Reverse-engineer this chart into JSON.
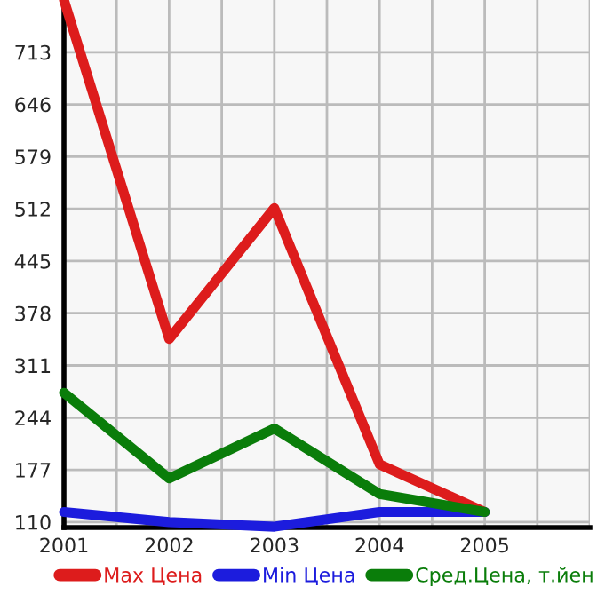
{
  "chart_data": {
    "type": "line",
    "x": [
      2001,
      2002,
      2003,
      2004,
      2005
    ],
    "series": [
      {
        "name": "Max Цена",
        "color": "#dd1c1c",
        "values": [
          780,
          345,
          513,
          184,
          123
        ]
      },
      {
        "name": "Min Цена",
        "color": "#1c1cdd",
        "values": [
          123,
          110,
          104,
          123,
          123
        ]
      },
      {
        "name": "Сред.Цена, т.йен",
        "color": "#0a7d0a",
        "values": [
          276,
          166,
          230,
          146,
          123
        ]
      }
    ],
    "xlim": [
      2001,
      2006
    ],
    "xticks": [
      2001,
      {
        "value": 2001.5,
        "label": null
      },
      2002,
      {
        "value": 2002.5,
        "label": null
      },
      2003,
      {
        "value": 2003.5,
        "label": null
      },
      2004,
      {
        "value": 2004.5,
        "label": null
      },
      2005,
      {
        "value": 2005.5,
        "label": null
      },
      {
        "value": 2006,
        "label": null
      }
    ],
    "ylim": [
      103,
      780
    ],
    "yticks": [
      110,
      177,
      244,
      311,
      378,
      445,
      512,
      579,
      646,
      713
    ],
    "grid": true,
    "legend": "bottom",
    "marker": "none",
    "line_style": "solid"
  }
}
